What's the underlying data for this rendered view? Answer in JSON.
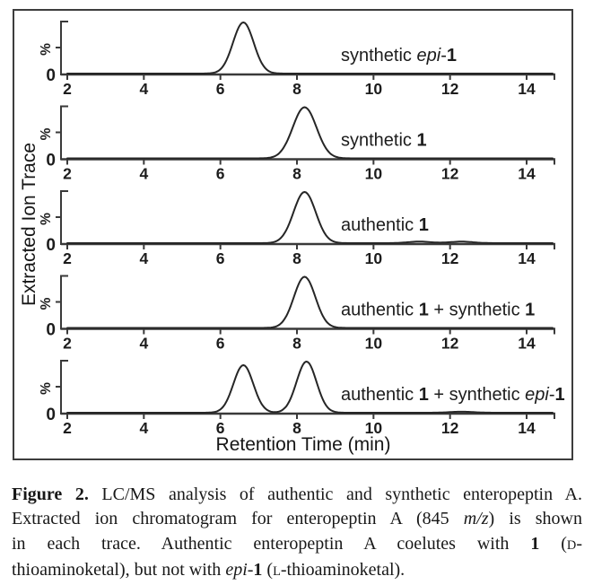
{
  "colors": {
    "trace": "#262626",
    "axis": "#3a3a3a",
    "text": "#1c1c1c",
    "border": "#3d3d3d",
    "background": "#ffffff"
  },
  "chart_data": {
    "type": "line",
    "description": "Stacked extracted ion chromatograms (LC/MS traces)",
    "xlabel": "Retention Time (min)",
    "ylabel": "Extracted Ion Trace",
    "y_unit_label": "%",
    "y_zero_label": "0",
    "x_ticks": [
      2,
      4,
      6,
      8,
      10,
      12,
      14
    ],
    "xlim": [
      2,
      14.7
    ],
    "ylim_percent": [
      0,
      100
    ],
    "grid": false,
    "traces": [
      {
        "label": "synthetic epi-1",
        "label_segments": [
          {
            "t": "synthetic ",
            "s": "n"
          },
          {
            "t": "epi",
            "s": "i"
          },
          {
            "t": "-",
            "s": "n"
          },
          {
            "t": "1",
            "s": "b"
          }
        ],
        "peaks": [
          {
            "rt_min": 6.6,
            "height_pct": 100,
            "sigma_min": 0.27
          }
        ]
      },
      {
        "label": "synthetic 1",
        "label_segments": [
          {
            "t": "synthetic ",
            "s": "n"
          },
          {
            "t": "1",
            "s": "b"
          }
        ],
        "peaks": [
          {
            "rt_min": 8.2,
            "height_pct": 100,
            "sigma_min": 0.31
          }
        ]
      },
      {
        "label": "authentic 1",
        "label_segments": [
          {
            "t": "authentic ",
            "s": "n"
          },
          {
            "t": "1",
            "s": "b"
          }
        ],
        "peaks": [
          {
            "rt_min": 8.2,
            "height_pct": 100,
            "sigma_min": 0.29
          },
          {
            "rt_min": 11.2,
            "height_pct": 3,
            "sigma_min": 0.3
          },
          {
            "rt_min": 12.3,
            "height_pct": 3,
            "sigma_min": 0.3
          }
        ]
      },
      {
        "label": "authentic 1 + synthetic 1",
        "label_segments": [
          {
            "t": "authentic ",
            "s": "n"
          },
          {
            "t": "1",
            "s": "b"
          },
          {
            "t": " + synthetic ",
            "s": "n"
          },
          {
            "t": "1",
            "s": "b"
          }
        ],
        "peaks": [
          {
            "rt_min": 8.2,
            "height_pct": 100,
            "sigma_min": 0.28
          }
        ]
      },
      {
        "label": "authentic 1 + synthetic epi-1",
        "label_segments": [
          {
            "t": "authentic ",
            "s": "n"
          },
          {
            "t": "1",
            "s": "b"
          },
          {
            "t": " + synthetic ",
            "s": "n"
          },
          {
            "t": "epi",
            "s": "i"
          },
          {
            "t": "-",
            "s": "n"
          },
          {
            "t": "1",
            "s": "b"
          }
        ],
        "peaks": [
          {
            "rt_min": 6.6,
            "height_pct": 93,
            "sigma_min": 0.26
          },
          {
            "rt_min": 8.25,
            "height_pct": 100,
            "sigma_min": 0.26
          },
          {
            "rt_min": 12.3,
            "height_pct": 2,
            "sigma_min": 0.3
          }
        ]
      }
    ]
  },
  "caption": {
    "text": "Figure 2. LC/MS analysis of authentic and synthetic enteropeptin A. Extracted ion chromatogram for enteropeptin A (845 m/z) is shown in each trace. Authentic enteropeptin A coelutes with 1 (D-thioaminoketal), but not with epi-1 (L-thioaminoketal).",
    "lines": [
      [
        {
          "t": "Figure 2.",
          "s": "b"
        },
        {
          "t": " LC/MS analysis of authentic and synthetic enteropeptin A.",
          "s": "n"
        }
      ],
      [
        {
          "t": "Extracted ion chromatogram for enteropeptin A (845 ",
          "s": "n"
        },
        {
          "t": "m/z",
          "s": "i"
        },
        {
          "t": ") is shown",
          "s": "n"
        }
      ],
      [
        {
          "t": "in each trace. Authentic enteropeptin A coelutes with ",
          "s": "n"
        },
        {
          "t": "1",
          "s": "b"
        },
        {
          "t": " (",
          "s": "n"
        },
        {
          "t": "D",
          "s": "sc"
        },
        {
          "t": "-",
          "s": "n"
        }
      ],
      [
        {
          "t": "thioaminoketal), but not with ",
          "s": "n"
        },
        {
          "t": "epi",
          "s": "i"
        },
        {
          "t": "-",
          "s": "n"
        },
        {
          "t": "1",
          "s": "b"
        },
        {
          "t": " (",
          "s": "n"
        },
        {
          "t": "L",
          "s": "sc"
        },
        {
          "t": "-thioaminoketal).",
          "s": "n"
        }
      ]
    ]
  }
}
